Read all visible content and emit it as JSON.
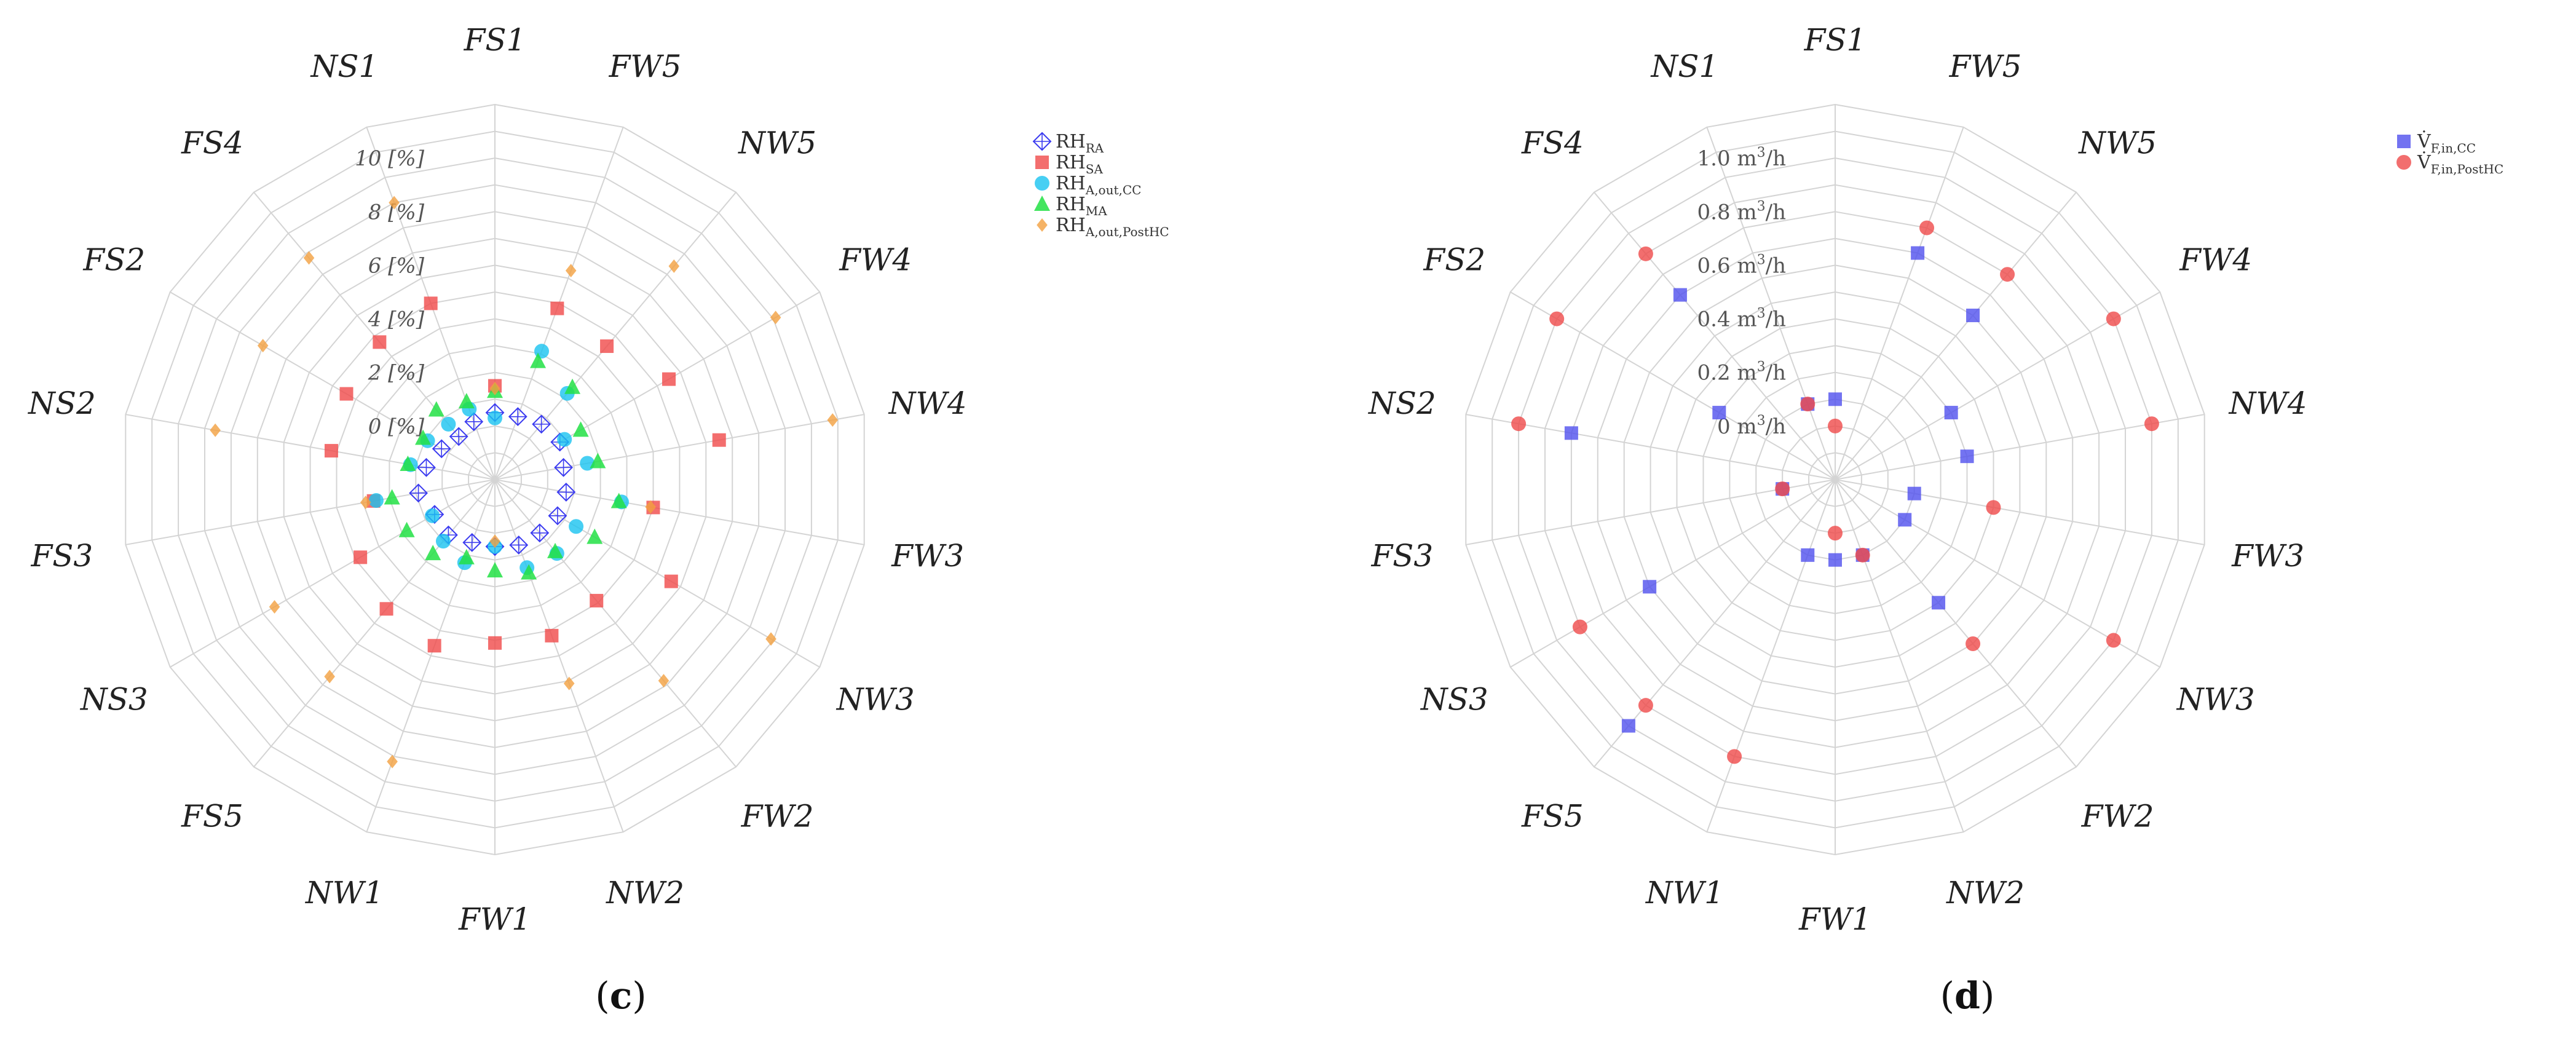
{
  "panels": [
    {
      "caption": "(c)",
      "caption_letter": "c",
      "chart_data": {
        "type": "radar",
        "angles": [
          "FS1",
          "FW5",
          "NW5",
          "FW4",
          "NW4",
          "FW3",
          "NW3",
          "FW2",
          "NW2",
          "FW1",
          "NW1",
          "FS5",
          "NS3",
          "FS3",
          "NS2",
          "FS2",
          "FS4",
          "NS1"
        ],
        "r_ticks": [
          {
            "v": 0,
            "label": "0 [%]"
          },
          {
            "v": 2,
            "label": "2 [%]"
          },
          {
            "v": 4,
            "label": "4 [%]"
          },
          {
            "v": 6,
            "label": "6 [%]"
          },
          {
            "v": 8,
            "label": "8 [%]"
          },
          {
            "v": 10,
            "label": "10 [%]"
          }
        ],
        "rlim": [
          -2,
          12
        ],
        "rings": 14,
        "grid": true,
        "legend_position": "top-right",
        "series": [
          {
            "name": "RH",
            "sub": "RA",
            "marker": "diamond-cross",
            "color": "#3b3bf0",
            "values": [
              0.5,
              0.5,
              0.7,
              0.8,
              0.6,
              0.7,
              0.7,
              0.6,
              0.6,
              0.5,
              0.5,
              0.7,
              0.6,
              0.9,
              0.6,
              0.3,
              0.1,
              0.3
            ]
          },
          {
            "name": "RH",
            "sub": "SA",
            "marker": "square",
            "color": "#f04a4a",
            "values": [
              1.5,
              4.8,
              4.5,
              5.5,
              6.5,
              4.0,
              5.6,
              3.9,
              4.2,
              4.1,
              4.6,
              4.3,
              3.8,
              2.6,
              4.2,
              4.4,
              4.7,
              5.0
            ]
          },
          {
            "name": "RH",
            "sub": "A,out,CC",
            "marker": "circle",
            "color": "#19c3f0",
            "values": [
              0.3,
              3.1,
              2.2,
              1.0,
              1.5,
              2.8,
              1.5,
              1.6,
              1.5,
              0.5,
              1.3,
              1.0,
              0.7,
              2.5,
              1.2,
              0.9,
              0.7,
              0.8
            ]
          },
          {
            "name": "RH",
            "sub": "MA",
            "marker": "triangle",
            "color": "#22e044",
            "values": [
              1.3,
              2.7,
              2.5,
              1.7,
              1.9,
              2.7,
              2.3,
              1.5,
              1.7,
              1.4,
              1.1,
              1.6,
              1.8,
              1.9,
              1.3,
              1.1,
              1.4,
              1.1
            ]
          },
          {
            "name": "RH",
            "sub": "A,out,PostHC",
            "marker": "diamond",
            "color": "#f3a040",
            "values": [
              1.4,
              6.3,
              8.4,
              10.1,
              10.8,
              3.9,
              9.9,
              7.8,
              6.1,
              0.3,
              9.2,
              7.6,
              7.5,
              2.9,
              8.6,
              8.0,
              8.8,
              9.0
            ]
          }
        ]
      }
    },
    {
      "caption": "(d)",
      "caption_letter": "d",
      "chart_data": {
        "type": "radar",
        "angles": [
          "FS1",
          "FW5",
          "NW5",
          "FW4",
          "NW4",
          "FW3",
          "NW3",
          "FW2",
          "NW2",
          "FW1",
          "NW1",
          "FS5",
          "NS3",
          "FS3",
          "NS2",
          "FS2",
          "FS4",
          "NS1"
        ],
        "r_ticks": [
          {
            "v": 0.0,
            "label": "0 m³/h"
          },
          {
            "v": 0.2,
            "label": "0.2 m³/h"
          },
          {
            "v": 0.4,
            "label": "0.4 m³/h"
          },
          {
            "v": 0.6,
            "label": "0.6 m³/h"
          },
          {
            "v": 0.8,
            "label": "0.8 m³/h"
          },
          {
            "v": 1.0,
            "label": "1.0 m³/h"
          }
        ],
        "rlim": [
          -0.2,
          1.2
        ],
        "rings": 14,
        "grid": true,
        "legend_position": "top-right",
        "series": [
          {
            "name": "V̇",
            "sub": "F,in,CC",
            "marker": "square",
            "color": "#5050ee",
            "values": [
              0.1,
              0.7,
              0.6,
              0.3,
              0.3,
              0.1,
              0.1,
              0.4,
              0.1,
              0.1,
              0.1,
              1.0,
              0.6,
              0.0,
              0.8,
              0.3,
              0.7,
              0.1
            ]
          },
          {
            "name": "V̇",
            "sub": "F,in,PostHC",
            "marker": "circle",
            "color": "#ef4a4a",
            "values": [
              0.0,
              0.8,
              0.8,
              1.0,
              1.0,
              0.4,
              1.0,
              0.6,
              0.1,
              0.0,
              0.9,
              0.9,
              0.9,
              0.0,
              1.0,
              1.0,
              0.9,
              0.1
            ]
          }
        ]
      }
    }
  ]
}
